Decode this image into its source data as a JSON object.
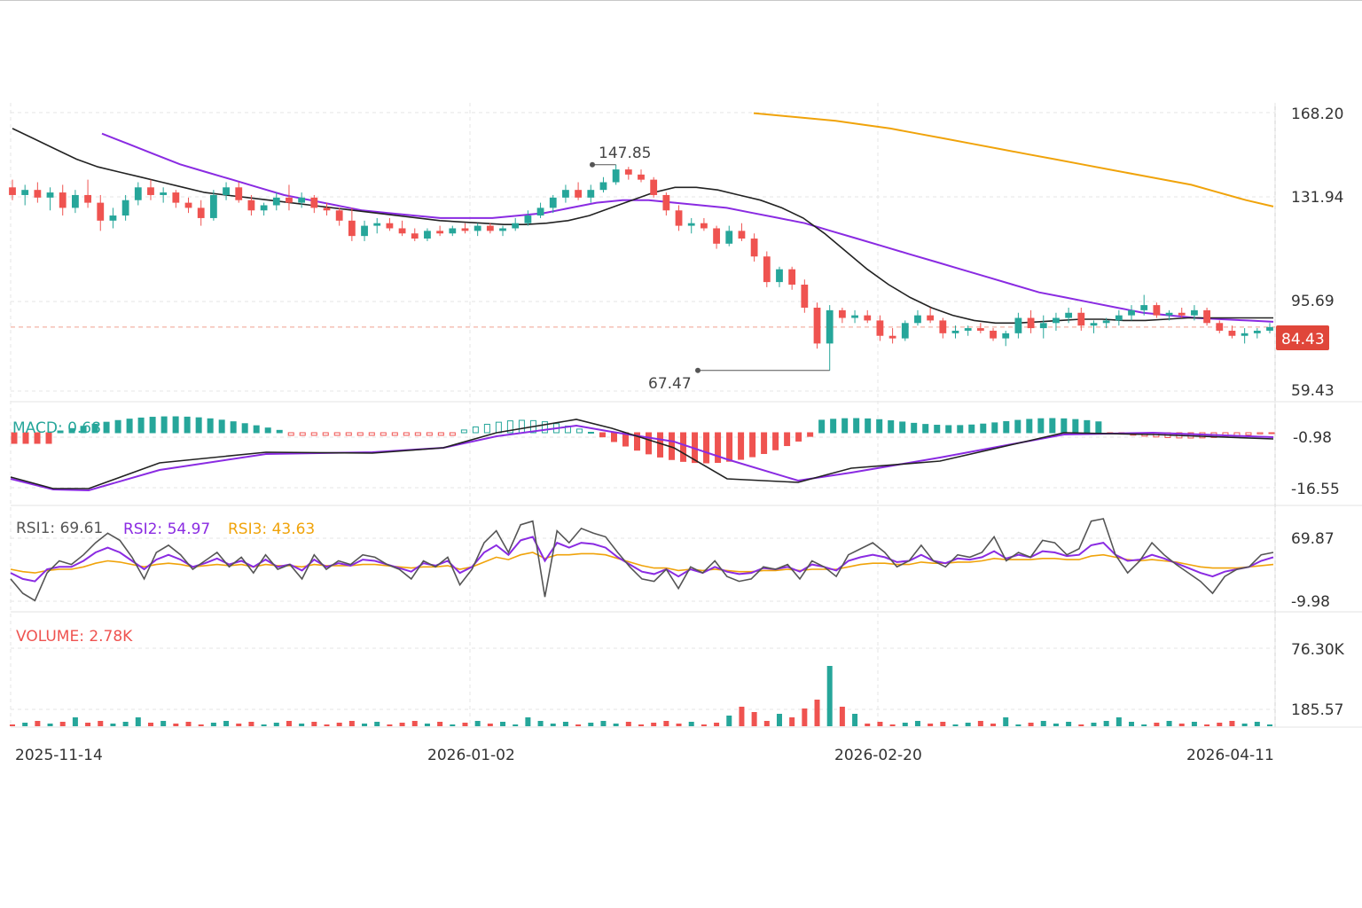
{
  "chart_data": {
    "type": "candlestick",
    "x_ticks": [
      "2025-11-14",
      "2026-01-02",
      "2026-02-20",
      "2026-04-11"
    ],
    "price_panel": {
      "y_ticks": [
        "168.20",
        "131.94",
        "95.69",
        "59.43"
      ],
      "last_price": "84.43",
      "high_label": "147.85",
      "low_label": "67.47",
      "candles": [
        {
          "o": 139,
          "h": 142,
          "l": 134,
          "c": 136
        },
        {
          "o": 136,
          "h": 140,
          "l": 132,
          "c": 138
        },
        {
          "o": 138,
          "h": 141,
          "l": 133,
          "c": 135
        },
        {
          "o": 135,
          "h": 139,
          "l": 130,
          "c": 137
        },
        {
          "o": 137,
          "h": 140,
          "l": 128,
          "c": 131
        },
        {
          "o": 131,
          "h": 138,
          "l": 129,
          "c": 136
        },
        {
          "o": 136,
          "h": 142,
          "l": 131,
          "c": 133
        },
        {
          "o": 133,
          "h": 136,
          "l": 122,
          "c": 126
        },
        {
          "o": 126,
          "h": 131,
          "l": 123,
          "c": 128
        },
        {
          "o": 128,
          "h": 136,
          "l": 126,
          "c": 134
        },
        {
          "o": 134,
          "h": 141,
          "l": 132,
          "c": 139
        },
        {
          "o": 139,
          "h": 142,
          "l": 134,
          "c": 136
        },
        {
          "o": 136,
          "h": 139,
          "l": 133,
          "c": 137
        },
        {
          "o": 137,
          "h": 138,
          "l": 131,
          "c": 133
        },
        {
          "o": 133,
          "h": 135,
          "l": 129,
          "c": 131
        },
        {
          "o": 131,
          "h": 134,
          "l": 124,
          "c": 127
        },
        {
          "o": 127,
          "h": 138,
          "l": 126,
          "c": 136
        },
        {
          "o": 136,
          "h": 141,
          "l": 134,
          "c": 139
        },
        {
          "o": 139,
          "h": 141,
          "l": 133,
          "c": 134
        },
        {
          "o": 134,
          "h": 136,
          "l": 128,
          "c": 130
        },
        {
          "o": 130,
          "h": 133,
          "l": 128,
          "c": 132
        },
        {
          "o": 132,
          "h": 137,
          "l": 130,
          "c": 135
        },
        {
          "o": 135,
          "h": 140,
          "l": 130,
          "c": 133
        },
        {
          "o": 133,
          "h": 137,
          "l": 131,
          "c": 135
        },
        {
          "o": 135,
          "h": 136,
          "l": 129,
          "c": 131
        },
        {
          "o": 131,
          "h": 133,
          "l": 128,
          "c": 130
        },
        {
          "o": 130,
          "h": 131,
          "l": 124,
          "c": 126
        },
        {
          "o": 126,
          "h": 131,
          "l": 118,
          "c": 120
        },
        {
          "o": 120,
          "h": 126,
          "l": 118,
          "c": 124
        },
        {
          "o": 124,
          "h": 127,
          "l": 121,
          "c": 125
        },
        {
          "o": 125,
          "h": 127,
          "l": 122,
          "c": 123
        },
        {
          "o": 123,
          "h": 126,
          "l": 120,
          "c": 121
        },
        {
          "o": 121,
          "h": 123,
          "l": 118,
          "c": 119
        },
        {
          "o": 119,
          "h": 123,
          "l": 118,
          "c": 122
        },
        {
          "o": 122,
          "h": 124,
          "l": 120,
          "c": 121
        },
        {
          "o": 121,
          "h": 124,
          "l": 120,
          "c": 123
        },
        {
          "o": 123,
          "h": 125,
          "l": 121,
          "c": 122
        },
        {
          "o": 122,
          "h": 125,
          "l": 120,
          "c": 124
        },
        {
          "o": 124,
          "h": 125,
          "l": 121,
          "c": 122
        },
        {
          "o": 122,
          "h": 124,
          "l": 120,
          "c": 123
        },
        {
          "o": 123,
          "h": 127,
          "l": 122,
          "c": 125
        },
        {
          "o": 125,
          "h": 130,
          "l": 124,
          "c": 128
        },
        {
          "o": 128,
          "h": 133,
          "l": 127,
          "c": 131
        },
        {
          "o": 131,
          "h": 136,
          "l": 129,
          "c": 135
        },
        {
          "o": 135,
          "h": 140,
          "l": 133,
          "c": 138
        },
        {
          "o": 138,
          "h": 141,
          "l": 134,
          "c": 135
        },
        {
          "o": 135,
          "h": 140,
          "l": 133,
          "c": 138
        },
        {
          "o": 138,
          "h": 143,
          "l": 137,
          "c": 141
        },
        {
          "o": 141,
          "h": 147.85,
          "l": 140,
          "c": 146
        },
        {
          "o": 146,
          "h": 147,
          "l": 142,
          "c": 144
        },
        {
          "o": 144,
          "h": 146,
          "l": 141,
          "c": 142
        },
        {
          "o": 142,
          "h": 143,
          "l": 135,
          "c": 136
        },
        {
          "o": 136,
          "h": 137,
          "l": 128,
          "c": 130
        },
        {
          "o": 130,
          "h": 132,
          "l": 122,
          "c": 124
        },
        {
          "o": 124,
          "h": 127,
          "l": 121,
          "c": 125
        },
        {
          "o": 125,
          "h": 127,
          "l": 122,
          "c": 123
        },
        {
          "o": 123,
          "h": 124,
          "l": 115,
          "c": 117
        },
        {
          "o": 117,
          "h": 124,
          "l": 116,
          "c": 122
        },
        {
          "o": 122,
          "h": 125,
          "l": 118,
          "c": 119
        },
        {
          "o": 119,
          "h": 121,
          "l": 110,
          "c": 112
        },
        {
          "o": 112,
          "h": 114,
          "l": 100,
          "c": 102
        },
        {
          "o": 102,
          "h": 108,
          "l": 100,
          "c": 107
        },
        {
          "o": 107,
          "h": 108,
          "l": 99,
          "c": 101
        },
        {
          "o": 101,
          "h": 103,
          "l": 90,
          "c": 92
        },
        {
          "o": 92,
          "h": 94,
          "l": 76,
          "c": 78
        },
        {
          "o": 78,
          "h": 93,
          "l": 67.47,
          "c": 91
        },
        {
          "o": 91,
          "h": 92,
          "l": 86,
          "c": 88
        },
        {
          "o": 88,
          "h": 91,
          "l": 86,
          "c": 89
        },
        {
          "o": 89,
          "h": 91,
          "l": 86,
          "c": 87
        },
        {
          "o": 87,
          "h": 89,
          "l": 79,
          "c": 81
        },
        {
          "o": 81,
          "h": 84,
          "l": 78,
          "c": 80
        },
        {
          "o": 80,
          "h": 87,
          "l": 79,
          "c": 86
        },
        {
          "o": 86,
          "h": 91,
          "l": 85,
          "c": 89
        },
        {
          "o": 89,
          "h": 92,
          "l": 86,
          "c": 87
        },
        {
          "o": 87,
          "h": 88,
          "l": 80,
          "c": 82
        },
        {
          "o": 82,
          "h": 85,
          "l": 80,
          "c": 83
        },
        {
          "o": 83,
          "h": 85,
          "l": 81,
          "c": 84
        },
        {
          "o": 84,
          "h": 86,
          "l": 82,
          "c": 83
        },
        {
          "o": 83,
          "h": 84,
          "l": 79,
          "c": 80
        },
        {
          "o": 80,
          "h": 83,
          "l": 77,
          "c": 82
        },
        {
          "o": 82,
          "h": 90,
          "l": 80,
          "c": 88
        },
        {
          "o": 88,
          "h": 91,
          "l": 82,
          "c": 84
        },
        {
          "o": 84,
          "h": 89,
          "l": 80,
          "c": 86
        },
        {
          "o": 86,
          "h": 90,
          "l": 83,
          "c": 88
        },
        {
          "o": 88,
          "h": 92,
          "l": 86,
          "c": 90
        },
        {
          "o": 90,
          "h": 92,
          "l": 83,
          "c": 85
        },
        {
          "o": 85,
          "h": 87,
          "l": 82,
          "c": 86
        },
        {
          "o": 86,
          "h": 88,
          "l": 84,
          "c": 87
        },
        {
          "o": 87,
          "h": 91,
          "l": 85,
          "c": 89
        },
        {
          "o": 89,
          "h": 93,
          "l": 87,
          "c": 91
        },
        {
          "o": 91,
          "h": 97,
          "l": 89,
          "c": 93
        },
        {
          "o": 93,
          "h": 94,
          "l": 88,
          "c": 89
        },
        {
          "o": 89,
          "h": 91,
          "l": 87,
          "c": 90
        },
        {
          "o": 90,
          "h": 92,
          "l": 88,
          "c": 89
        },
        {
          "o": 89,
          "h": 93,
          "l": 87,
          "c": 91
        },
        {
          "o": 91,
          "h": 92,
          "l": 85,
          "c": 86
        },
        {
          "o": 86,
          "h": 87,
          "l": 82,
          "c": 83
        },
        {
          "o": 83,
          "h": 85,
          "l": 80,
          "c": 81
        },
        {
          "o": 81,
          "h": 84,
          "l": 78,
          "c": 82
        },
        {
          "o": 82,
          "h": 84,
          "l": 80,
          "c": 83
        },
        {
          "o": 83,
          "h": 86,
          "l": 82,
          "c": 84.43
        }
      ],
      "ma_black": [
        162,
        158,
        154,
        150,
        147,
        145,
        143,
        141,
        139,
        137,
        136,
        135,
        134,
        133,
        132,
        131,
        130,
        129,
        128,
        127,
        126,
        125.5,
        125,
        124.5,
        124.5,
        125,
        126,
        128,
        131,
        134,
        137,
        139,
        139,
        138,
        136,
        134,
        131,
        127,
        121,
        114,
        107,
        101,
        96,
        92,
        89,
        87,
        86,
        86,
        86.5,
        87,
        87.5,
        87.5,
        87,
        87,
        87.5,
        88,
        88,
        88,
        88,
        88
      ],
      "ma_purple": [
        160,
        156,
        152,
        148,
        145,
        142,
        139,
        136,
        134,
        132,
        130,
        129,
        128,
        127,
        127,
        127,
        128,
        129,
        131,
        133,
        134,
        134,
        133,
        132,
        131,
        129,
        127,
        125,
        122,
        119,
        116,
        113,
        110,
        107,
        104,
        101,
        98,
        96,
        94,
        92,
        90,
        89,
        88,
        87.5,
        87,
        86.5
      ],
      "ma_orange": [
        168,
        167,
        166,
        165,
        163.5,
        162,
        160,
        158,
        156,
        154,
        152,
        150,
        148,
        146,
        144,
        142,
        140,
        137,
        134,
        131.5
      ]
    },
    "macd_panel": {
      "label": "MACD: 0.68",
      "y_ticks": [
        "-0.98",
        "-16.55"
      ]
    },
    "rsi_panel": {
      "rsi1_label": "RSI1: 69.61",
      "rsi2_label": "RSI2: 54.97",
      "rsi3_label": "RSI3: 43.63",
      "y_ticks": [
        "69.87",
        "-9.98"
      ],
      "rsi1": [
        40,
        28,
        22,
        45,
        55,
        52,
        60,
        70,
        78,
        72,
        58,
        40,
        62,
        68,
        60,
        48,
        55,
        62,
        50,
        58,
        45,
        60,
        48,
        52,
        40,
        60,
        48,
        55,
        52,
        60,
        58,
        52,
        48,
        40,
        55,
        50,
        58,
        35,
        48,
        70,
        80,
        62,
        85,
        88,
        25,
        80,
        70,
        82,
        78,
        75,
        62,
        50,
        40,
        38,
        48,
        32,
        50,
        45,
        55,
        42,
        38,
        40,
        50,
        48,
        52,
        40,
        55,
        50,
        42,
        60,
        65,
        70,
        62,
        50,
        55,
        68,
        55,
        50,
        60,
        58,
        62,
        75,
        55,
        62,
        58,
        72,
        70,
        60,
        65,
        88,
        90,
        60,
        45,
        55,
        70,
        60,
        52,
        45,
        38,
        28,
        42,
        48,
        50,
        60,
        62
      ],
      "rsi2": [
        45,
        40,
        38,
        48,
        50,
        50,
        55,
        62,
        66,
        62,
        55,
        48,
        56,
        60,
        56,
        50,
        53,
        57,
        52,
        55,
        50,
        56,
        50,
        52,
        47,
        56,
        50,
        53,
        51,
        56,
        55,
        52,
        49,
        46,
        53,
        51,
        55,
        45,
        50,
        62,
        68,
        60,
        72,
        75,
        55,
        70,
        66,
        70,
        69,
        66,
        58,
        52,
        46,
        44,
        48,
        42,
        48,
        45,
        50,
        46,
        44,
        45,
        49,
        48,
        50,
        46,
        52,
        50,
        47,
        55,
        58,
        60,
        58,
        54,
        55,
        60,
        55,
        53,
        57,
        56,
        58,
        63,
        57,
        60,
        58,
        63,
        62,
        59,
        60,
        68,
        70,
        60,
        55,
        56,
        60,
        57,
        53,
        49,
        45,
        42,
        46,
        48,
        50,
        55,
        58
      ],
      "rsi3": [
        48,
        46,
        45,
        47,
        48,
        48,
        50,
        53,
        55,
        54,
        52,
        50,
        52,
        53,
        52,
        50,
        51,
        52,
        51,
        52,
        50,
        52,
        51,
        51,
        50,
        52,
        51,
        51,
        51,
        52,
        52,
        51,
        50,
        49,
        50,
        50,
        51,
        48,
        50,
        54,
        58,
        56,
        60,
        62,
        57,
        60,
        60,
        61,
        61,
        60,
        57,
        54,
        51,
        49,
        49,
        47,
        48,
        47,
        48,
        47,
        46,
        46,
        47,
        47,
        48,
        47,
        48,
        48,
        48,
        50,
        52,
        53,
        53,
        52,
        52,
        54,
        53,
        53,
        54,
        54,
        55,
        57,
        56,
        56,
        56,
        57,
        57,
        56,
        56,
        59,
        60,
        58,
        56,
        55,
        56,
        55,
        54,
        52,
        50,
        49,
        49,
        49,
        50,
        51,
        52
      ]
    },
    "volume_panel": {
      "label": "VOLUME: 2.78K",
      "y_ticks": [
        "76.30K",
        "185.57"
      ],
      "spike_value": "76.30K"
    },
    "colors": {
      "up": "#26a69a",
      "down": "#ef5350",
      "ma_black": "#222222",
      "ma_purple": "#8a2be2",
      "ma_orange": "#f0a30a",
      "rsi1": "#555555",
      "rsi2": "#8a2be2",
      "rsi3": "#f0a30a",
      "price_tag": "#e0463a"
    }
  }
}
